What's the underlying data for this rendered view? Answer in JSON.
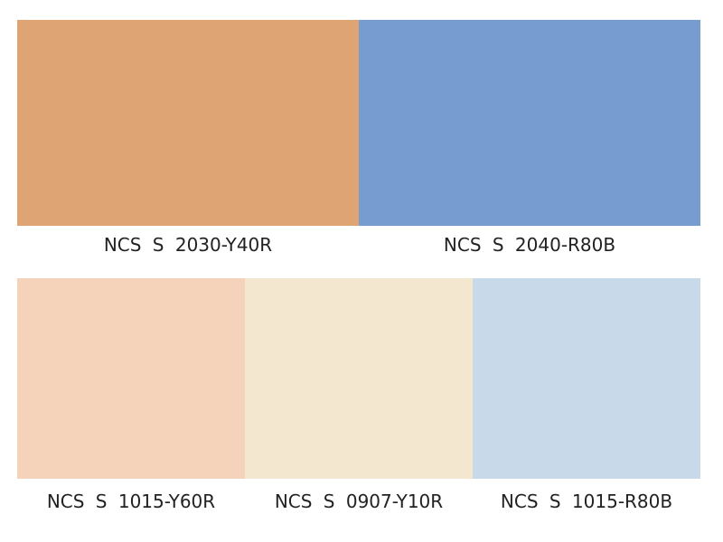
{
  "swatches": {
    "top": [
      {
        "label": "NCS S 2030-Y40R",
        "color": "#dfa474"
      },
      {
        "label": "NCS S 2040-R80B",
        "color": "#779ccf"
      }
    ],
    "bottom": [
      {
        "label": "NCS S 1015-Y60R",
        "color": "#f5d2ba"
      },
      {
        "label": "NCS S 0907-Y10R",
        "color": "#f3e8cf"
      },
      {
        "label": "NCS S 1015-R80B",
        "color": "#c8d9e9"
      }
    ]
  }
}
